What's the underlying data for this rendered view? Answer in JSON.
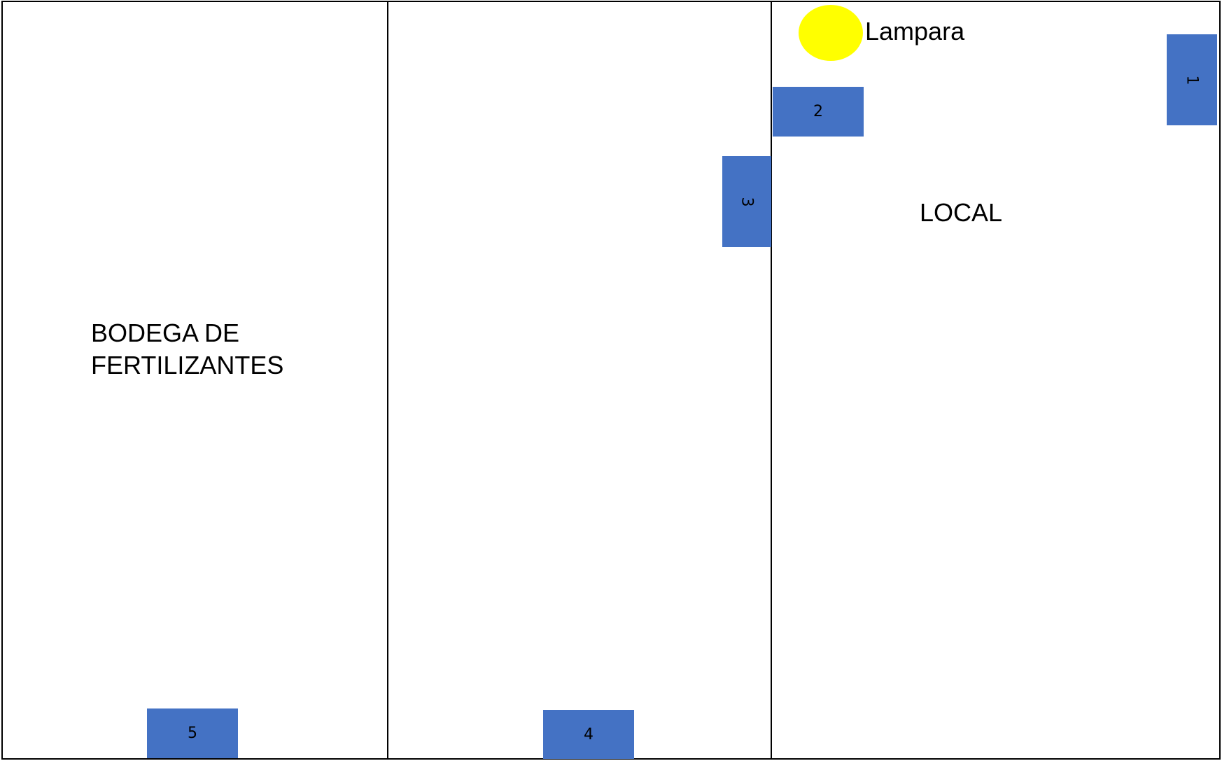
{
  "zones": {
    "left": {
      "label": "BODEGA DE\nFERTILIZANTES"
    },
    "right": {
      "label": "LOCAL"
    }
  },
  "lamp": {
    "label": "Lampara",
    "color": "#ffff00"
  },
  "markers": [
    {
      "id": "1",
      "label": "1",
      "orientation": "vertical"
    },
    {
      "id": "2",
      "label": "2",
      "orientation": "horizontal"
    },
    {
      "id": "3",
      "label": "3",
      "orientation": "vertical"
    },
    {
      "id": "4",
      "label": "4",
      "orientation": "horizontal"
    },
    {
      "id": "5",
      "label": "5",
      "orientation": "horizontal"
    }
  ],
  "colors": {
    "marker": "#4472c4",
    "lines": "#000000",
    "background": "#ffffff"
  }
}
